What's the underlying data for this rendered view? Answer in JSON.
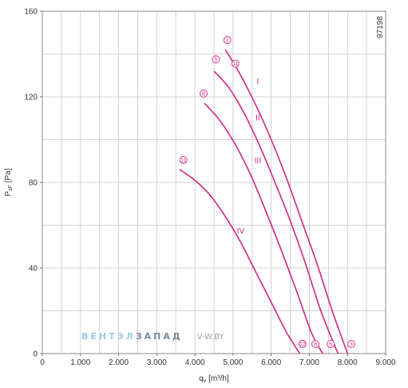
{
  "chart_data": {
    "type": "line",
    "xlabel": "q",
    "xlabel_sub": "v",
    "xlabel_unit": " [m³/h]",
    "ylabel": "P",
    "ylabel_sub": "sF",
    "ylabel_unit": " [Pa]",
    "xlim": [
      0,
      9000
    ],
    "ylim": [
      0,
      160
    ],
    "x_ticks": [
      0,
      1000,
      2000,
      3000,
      4000,
      5000,
      6000,
      7000,
      8000,
      9000
    ],
    "x_tick_labels": [
      "0",
      "1.000",
      "2.000",
      "3.000",
      "4.000",
      "5.000",
      "6.000",
      "7.000",
      "8.000",
      "9.000"
    ],
    "y_ticks": [
      0,
      40,
      80,
      120,
      160
    ],
    "y_tick_labels": [
      "0",
      "40",
      "80",
      "120",
      "160"
    ],
    "grid": true,
    "line_color": "#d4257c",
    "series": [
      {
        "name": "I",
        "label_at": [
          5650,
          126
        ],
        "points": [
          [
            4800,
            142
          ],
          [
            5200,
            130
          ],
          [
            5600,
            116
          ],
          [
            6000,
            100
          ],
          [
            6400,
            82
          ],
          [
            6800,
            62
          ],
          [
            7200,
            42
          ],
          [
            7600,
            20
          ],
          [
            8000,
            0
          ]
        ],
        "markers": [
          {
            "text": "2",
            "at": [
              4850,
              145
            ]
          },
          {
            "text": "11",
            "at": [
              5060,
              134
            ]
          },
          {
            "text": "3",
            "at": [
              8100,
              3
            ]
          }
        ]
      },
      {
        "name": "II",
        "label_at": [
          5650,
          109
        ],
        "points": [
          [
            4500,
            132
          ],
          [
            4900,
            124
          ],
          [
            5300,
            112
          ],
          [
            5700,
            97
          ],
          [
            6100,
            80
          ],
          [
            6500,
            62
          ],
          [
            6900,
            42
          ],
          [
            7300,
            20
          ],
          [
            7750,
            0
          ]
        ],
        "markers": [
          {
            "text": "5",
            "at": [
              4550,
              136
            ]
          },
          {
            "text": "6",
            "at": [
              7560,
              3
            ]
          }
        ]
      },
      {
        "name": "III",
        "label_at": [
          5650,
          89
        ],
        "points": [
          [
            4250,
            117
          ],
          [
            4650,
            109
          ],
          [
            5050,
            98
          ],
          [
            5450,
            84
          ],
          [
            5850,
            67
          ],
          [
            6250,
            49
          ],
          [
            6650,
            30
          ],
          [
            7050,
            10
          ],
          [
            7350,
            0
          ]
        ],
        "markers": [
          {
            "text": "8",
            "at": [
              4230,
              120
            ]
          },
          {
            "text": "8",
            "at": [
              7160,
              3
            ]
          }
        ]
      },
      {
        "name": "IV",
        "label_at": [
          5200,
          56
        ],
        "points": [
          [
            3600,
            86
          ],
          [
            4000,
            81
          ],
          [
            4400,
            74
          ],
          [
            4800,
            64
          ],
          [
            5200,
            52
          ],
          [
            5600,
            38
          ],
          [
            6000,
            24
          ],
          [
            6400,
            10
          ],
          [
            6750,
            0
          ]
        ],
        "markers": [
          {
            "text": "11",
            "at": [
              3700,
              89
            ]
          },
          {
            "text": "12",
            "at": [
              6820,
              3
            ]
          }
        ]
      }
    ]
  },
  "figure_code": "97198",
  "watermark": {
    "part1": "ВЕНТЭЛ",
    "part2": "ЗАПАД",
    "part3": "V-W.BY",
    "color1": "#9ccbe6",
    "color2": "#7d8a94",
    "color3": "#9aa3aa"
  }
}
